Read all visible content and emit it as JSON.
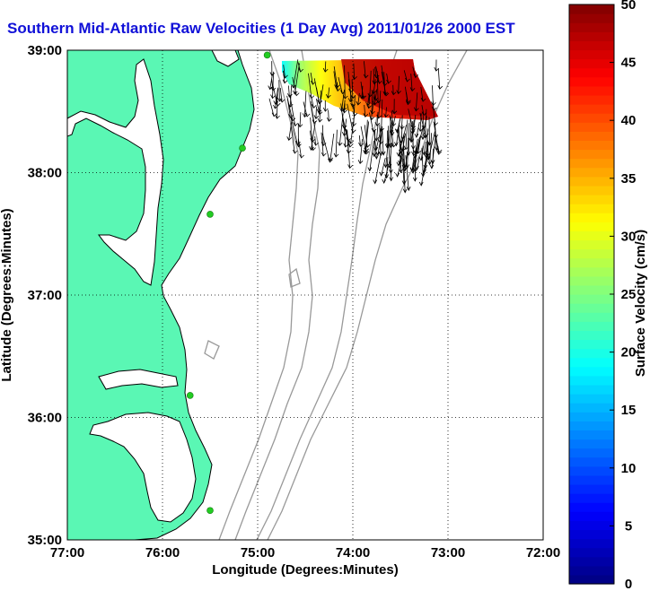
{
  "title": "Southern Mid-Atlantic Raw Velocities (1 Day Avg) 2011/01/26 2000 EST",
  "map": {
    "xlabel": "Longitude (Degrees:Minutes)",
    "ylabel": "Latitude (Degrees:Minutes)",
    "lon_ticks": [
      {
        "value": -77,
        "label": "77:00"
      },
      {
        "value": -76,
        "label": "76:00"
      },
      {
        "value": -75,
        "label": "75:00"
      },
      {
        "value": -74,
        "label": "74:00"
      },
      {
        "value": -73,
        "label": "73:00"
      },
      {
        "value": -72,
        "label": "72:00"
      }
    ],
    "lat_ticks": [
      {
        "value": 39,
        "label": "39:00"
      },
      {
        "value": 38,
        "label": "38:00"
      },
      {
        "value": 37,
        "label": "37:00"
      },
      {
        "value": 36,
        "label": "36:00"
      },
      {
        "value": 35,
        "label": "35:00"
      }
    ],
    "lon_range": [
      -77,
      -72
    ],
    "lat_range": [
      35,
      39
    ],
    "grid": "dotted",
    "land_color": "#5af7b4",
    "water_color": "#ffffff",
    "bathymetry_color": "#999999",
    "stations": [
      {
        "lon": -74.9,
        "lat": 38.96
      },
      {
        "lon": -75.16,
        "lat": 38.2
      },
      {
        "lon": -75.5,
        "lat": 37.66
      },
      {
        "lon": -75.71,
        "lat": 36.18
      },
      {
        "lon": -75.5,
        "lat": 35.24
      }
    ],
    "station_color": "#22cc22"
  },
  "colorbar": {
    "label": "Surface Velocity (cm/s)",
    "min": 0,
    "max": 50,
    "ticks": [
      0,
      5,
      10,
      15,
      20,
      25,
      30,
      35,
      40,
      45,
      50
    ],
    "colormap": "jet"
  }
}
